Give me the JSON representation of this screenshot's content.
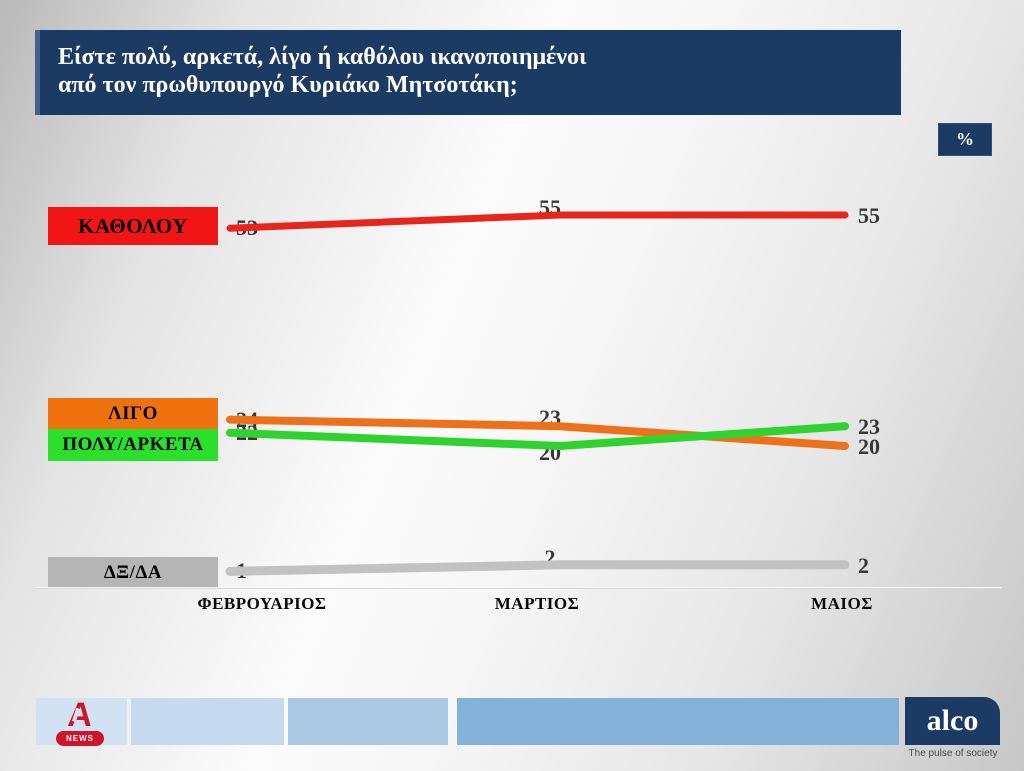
{
  "title": {
    "line1": "Είστε πολύ, αρκετά, λίγο ή καθόλου ικανοποιημένοι",
    "line2": "από τον πρωθυπουργό Κυριάκο Μητσοτάκη;"
  },
  "percent_badge": "%",
  "chart_data": {
    "type": "line",
    "title": "Είστε πολύ, αρκετά, λίγο ή καθόλου ικανοποιημένοι από τον πρωθυπουργό Κυριάκο Μητσοτάκη;",
    "unit": "%",
    "categories": [
      "ΦΕΒΡΟΥΑΡΙΟΣ",
      "ΜΑΡΤΙΟΣ",
      "ΜΑΙΟΣ"
    ],
    "series": [
      {
        "name": "ΚΑΘΟΛΟΥ",
        "values": [
          53,
          55,
          55
        ],
        "line_color": "#e8251d",
        "box_color": "#f21515"
      },
      {
        "name": "ΛΙΓΟ",
        "values": [
          24,
          23,
          20
        ],
        "line_color": "#ee7018",
        "box_color": "#f0720f"
      },
      {
        "name": "ΠΟΛΥ/ΑΡΚΕΤΑ",
        "values": [
          22,
          20,
          23
        ],
        "line_color": "#2fd32f",
        "box_color": "#2be02b"
      },
      {
        "name": "ΔΞ/ΔΑ",
        "values": [
          1,
          2,
          2
        ],
        "line_color": "#c2c2c2",
        "box_color": "#b5b5b5"
      }
    ],
    "grid": false,
    "legend_position": "left",
    "data_labels": true
  },
  "colors": {
    "title_bar": "#1c3b64",
    "badge": "#1b3a64",
    "value_label_text": "#383838"
  },
  "footer": {
    "tiles": [
      {
        "color": "#d2e2f2"
      },
      {
        "color": "#c5daee"
      },
      {
        "color": "#abc9e5"
      },
      {
        "color": "#82b1da"
      }
    ],
    "alpha_logo": {
      "letter": "A",
      "news_label": "NEWS"
    },
    "alco_logo": {
      "name": "alco",
      "tagline": "The pulse of society"
    }
  }
}
